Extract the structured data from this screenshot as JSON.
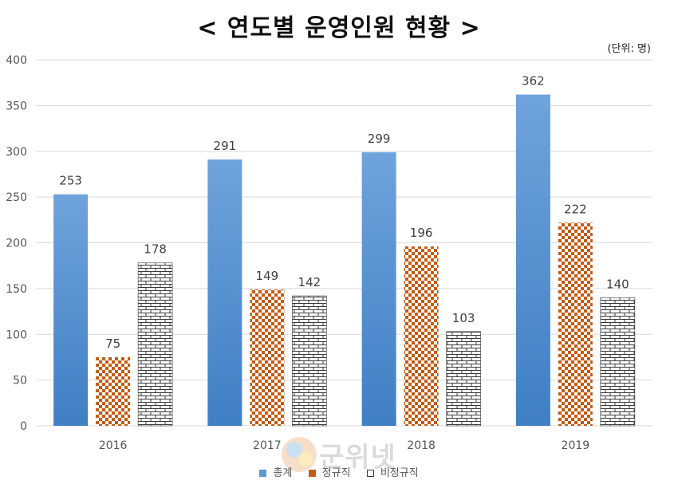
{
  "chart_data": {
    "type": "bar",
    "title": "< 연도별 운영인원 현황 >",
    "unit": "(단위: 명)",
    "categories": [
      "2016",
      "2017",
      "2018",
      "2019"
    ],
    "series": [
      {
        "name": "총계",
        "values": [
          253,
          291,
          299,
          362
        ]
      },
      {
        "name": "정규직",
        "values": [
          75,
          149,
          196,
          222
        ]
      },
      {
        "name": "비정규직",
        "values": [
          178,
          142,
          103,
          140
        ]
      }
    ],
    "ylim": [
      0,
      400
    ],
    "yticks": [
      0,
      50,
      100,
      150,
      200,
      250,
      300,
      350,
      400
    ],
    "grid": true,
    "legend": "bottom",
    "xlabel": "",
    "ylabel": ""
  },
  "colors": {
    "total_top": "#6fa3dc",
    "total_bottom": "#3f7fc4",
    "regular_a": "#c55a11",
    "regular_b": "#ffffff",
    "irregular_line": "#3a3a3a",
    "irregular_fill": "#ffffff"
  },
  "watermark": {
    "text": "군위넷"
  }
}
